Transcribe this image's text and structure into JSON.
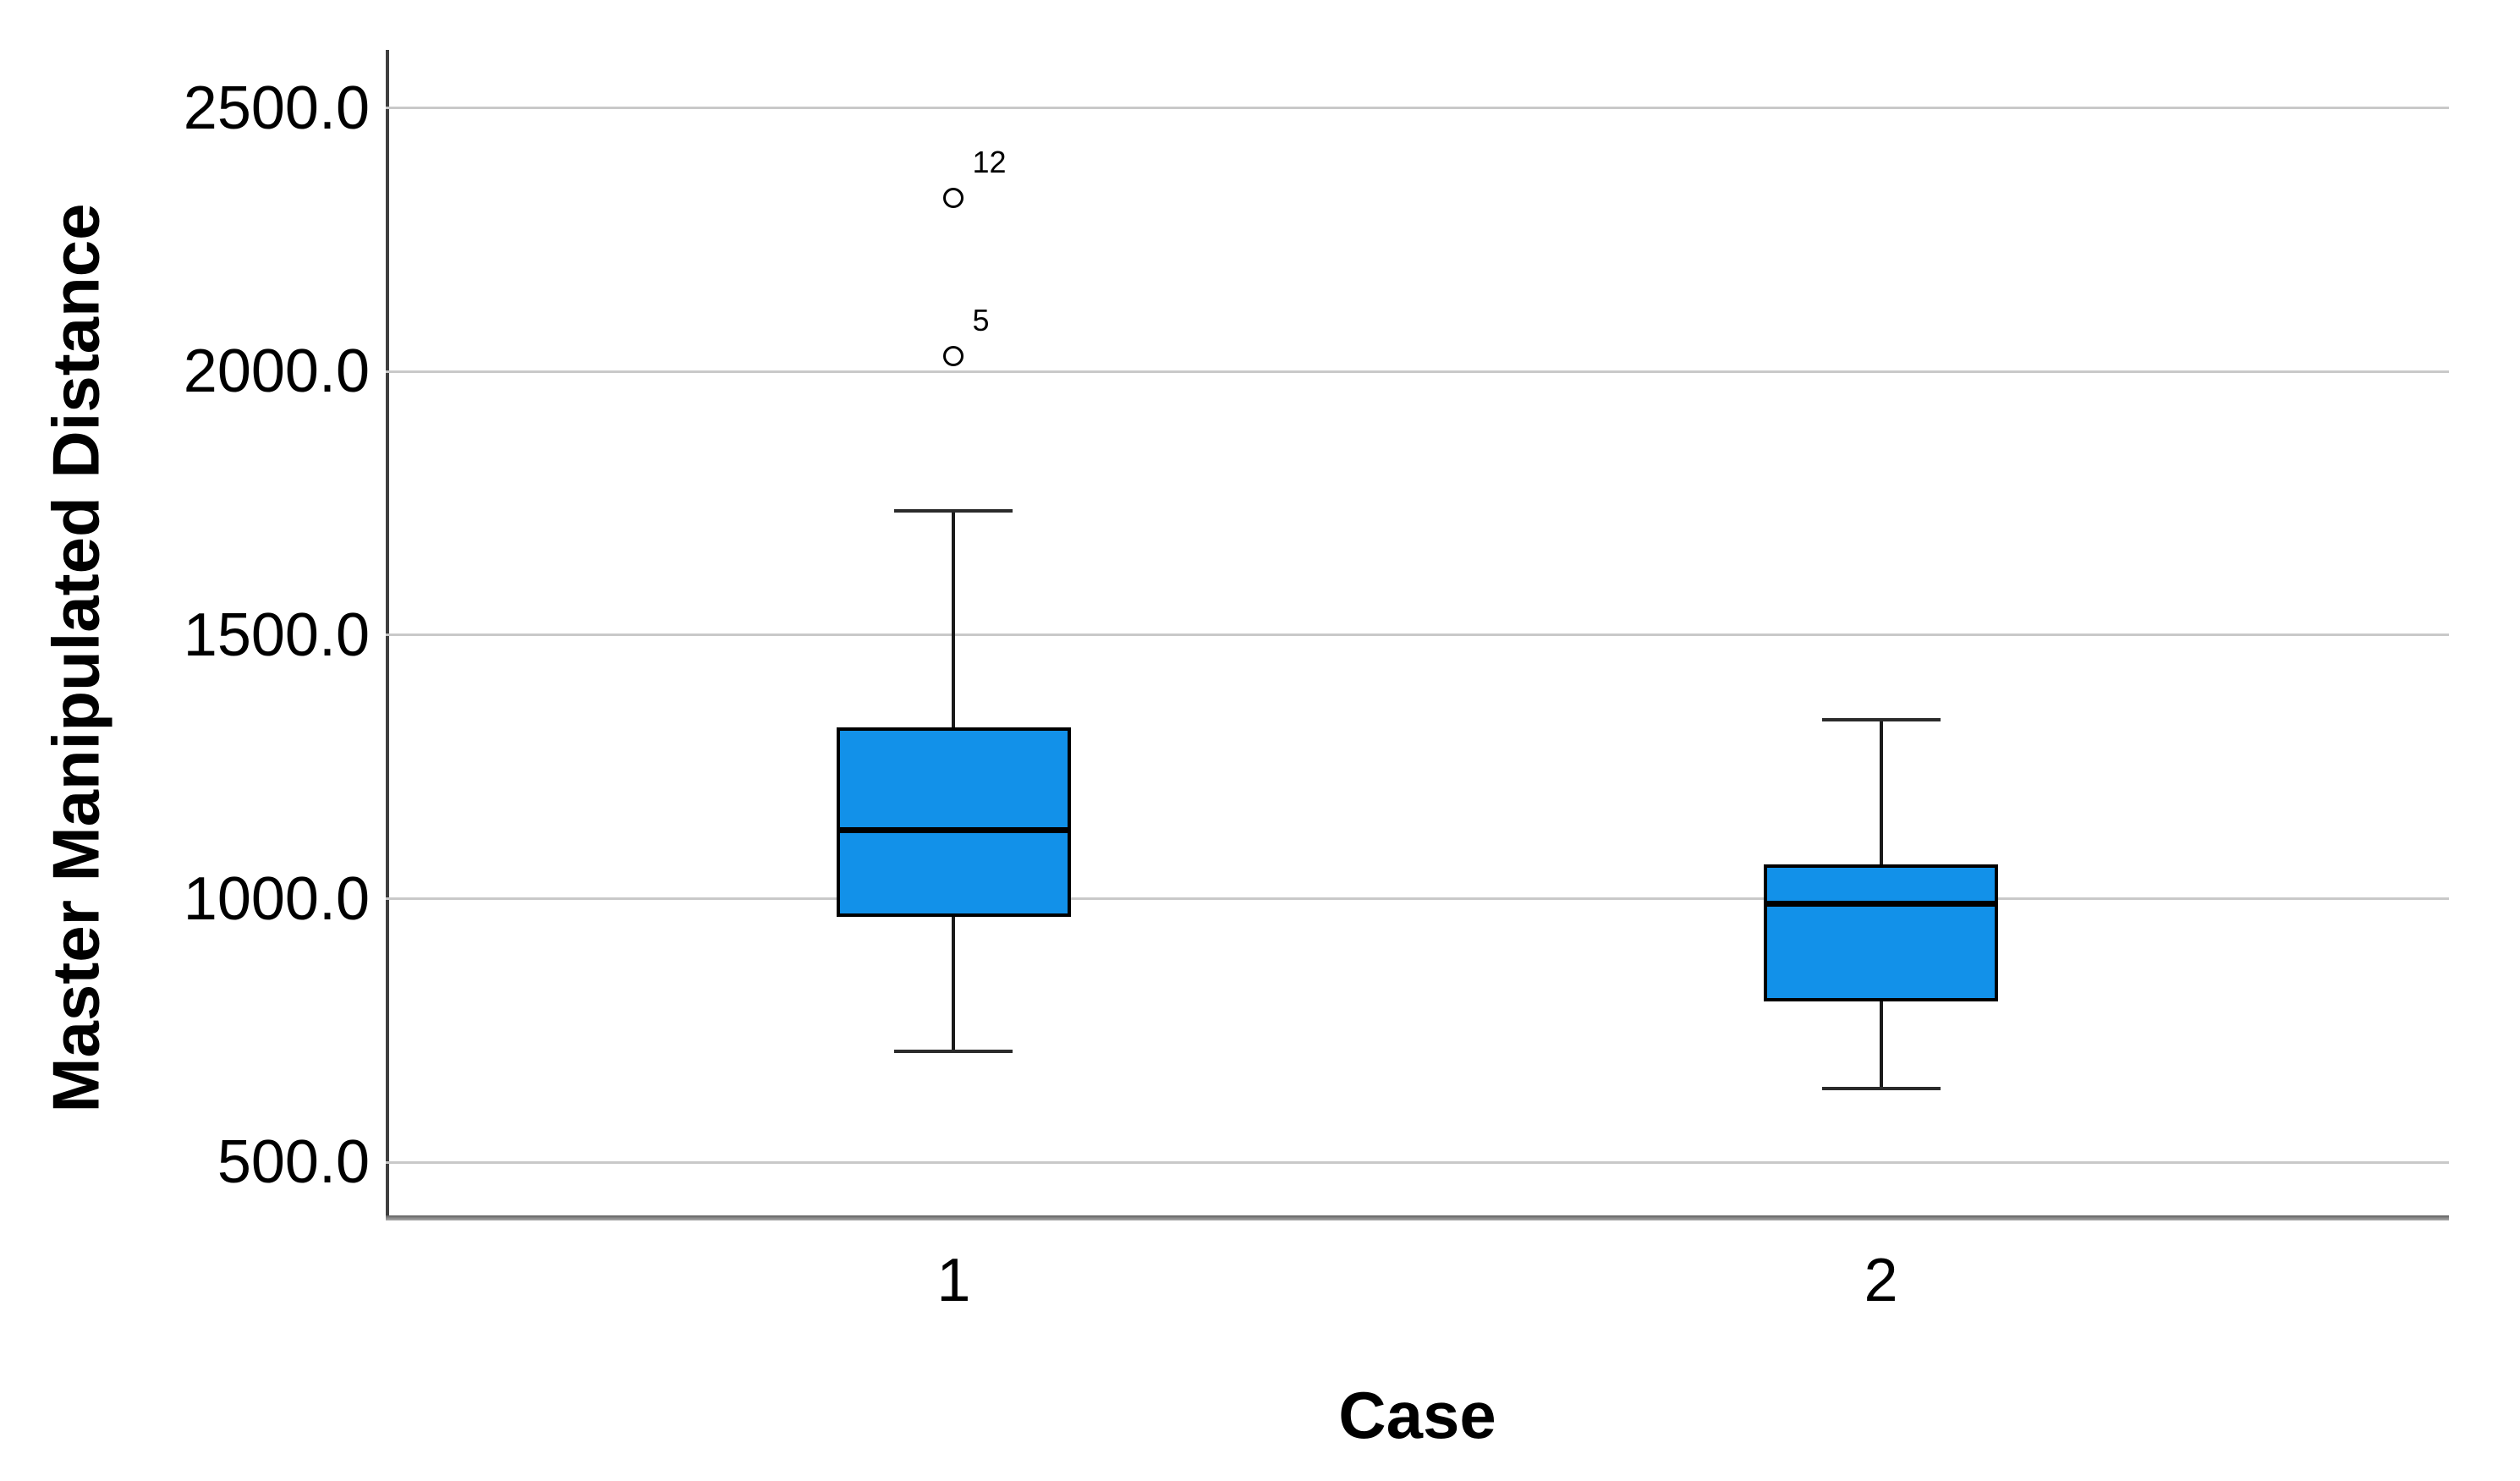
{
  "chart_data": {
    "type": "boxplot",
    "title": "",
    "xlabel": "Case",
    "ylabel": "Master Manipulated Distance",
    "categories": [
      "1",
      "2"
    ],
    "y_ticks": [
      500,
      1000,
      1500,
      2000,
      2500
    ],
    "y_tick_labels": [
      "500.0",
      "1000.0",
      "1500.0",
      "2000.0",
      "2500.0"
    ],
    "ylim": [
      396,
      2610
    ],
    "grid": true,
    "legend": "none",
    "series": [
      {
        "category": "1",
        "whisker_low": 710,
        "q1": 965,
        "median": 1130,
        "q3": 1325,
        "whisker_high": 1735,
        "outliers": [
          {
            "value": 2030,
            "label": "5"
          },
          {
            "value": 2330,
            "label": "12"
          }
        ]
      },
      {
        "category": "2",
        "whisker_low": 640,
        "q1": 805,
        "median": 990,
        "q3": 1065,
        "whisker_high": 1340,
        "outliers": []
      }
    ],
    "colors": {
      "box_fill": "#1291E9",
      "box_border": "#000000",
      "median": "#000000",
      "whisker": "#1a1a1a",
      "whisker_cap": "#2b2b2b",
      "outlier_stroke": "#000000",
      "gridline": "#c9c9c9",
      "y_axis_line": "#3f3f3f",
      "text": "#000000",
      "background": "#ffffff"
    },
    "outlier_marker": "circle"
  }
}
